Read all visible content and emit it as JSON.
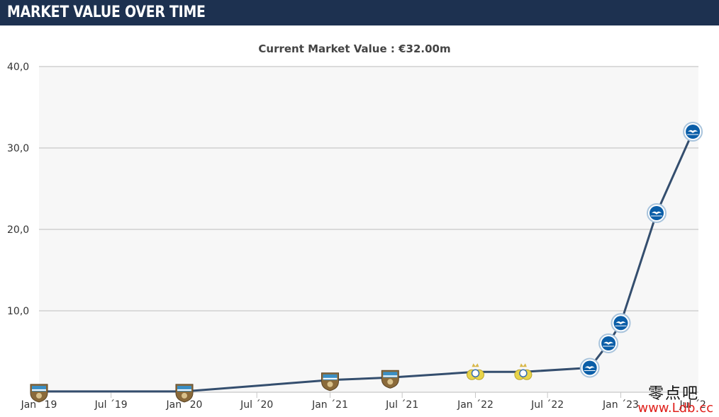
{
  "header": {
    "title": "MARKET VALUE OVER TIME"
  },
  "chart_data": {
    "type": "line",
    "title": "Current Market Value : €32.00m",
    "ylabel": "",
    "xlabel": "",
    "ylim": [
      0,
      40
    ],
    "yticks": [
      10,
      20,
      30,
      40
    ],
    "ytick_labels": [
      "10,0",
      "20,0",
      "30,0",
      "40,0"
    ],
    "xticks": [
      "2019-01-01",
      "2019-07-01",
      "2020-01-01",
      "2020-07-01",
      "2021-01-01",
      "2021-07-01",
      "2022-01-01",
      "2022-07-01",
      "2023-01-01",
      "2023-07-01"
    ],
    "xtick_labels": [
      "Jan ´19",
      "Jul ´19",
      "Jan ´20",
      "Jul ´20",
      "Jan ´21",
      "Jul ´21",
      "Jan ´22",
      "Jul ´22",
      "Jan ´23",
      "Jul ´2"
    ],
    "xlim": [
      "2019-01-01",
      "2023-07-15"
    ],
    "grid": true,
    "line_color": "#344e6e",
    "series": [
      {
        "points": [
          {
            "x": "2019-01-01",
            "y": 0.1,
            "club": "club-a"
          },
          {
            "x": "2020-01-01",
            "y": 0.1,
            "club": "club-a"
          },
          {
            "x": "2021-01-01",
            "y": 1.5,
            "club": "club-a"
          },
          {
            "x": "2021-06-01",
            "y": 1.8,
            "club": "club-a"
          },
          {
            "x": "2022-01-01",
            "y": 2.5,
            "club": "club-b"
          },
          {
            "x": "2022-05-01",
            "y": 2.5,
            "club": "club-b"
          },
          {
            "x": "2022-10-15",
            "y": 3.0,
            "club": "club-c"
          },
          {
            "x": "2022-12-01",
            "y": 6.0,
            "club": "club-c"
          },
          {
            "x": "2023-01-01",
            "y": 8.5,
            "club": "club-c"
          },
          {
            "x": "2023-04-01",
            "y": 22.0,
            "club": "club-c"
          },
          {
            "x": "2023-07-01",
            "y": 32.0,
            "club": "club-c"
          }
        ]
      }
    ]
  },
  "clubs": {
    "club-a": {
      "icon": "club-crest-shield-icon",
      "primary": "#3a8ec4",
      "secondary": "#8a6a3a"
    },
    "club-b": {
      "icon": "club-crest-gold-icon",
      "primary": "#e8d44a",
      "secondary": "#3a6fb0"
    },
    "club-c": {
      "icon": "club-crest-seagull-icon",
      "primary": "#0a5ea8",
      "secondary": "#ffffff"
    }
  },
  "watermark": {
    "cn": "零点吧",
    "url": "www.Ldb.cc"
  }
}
